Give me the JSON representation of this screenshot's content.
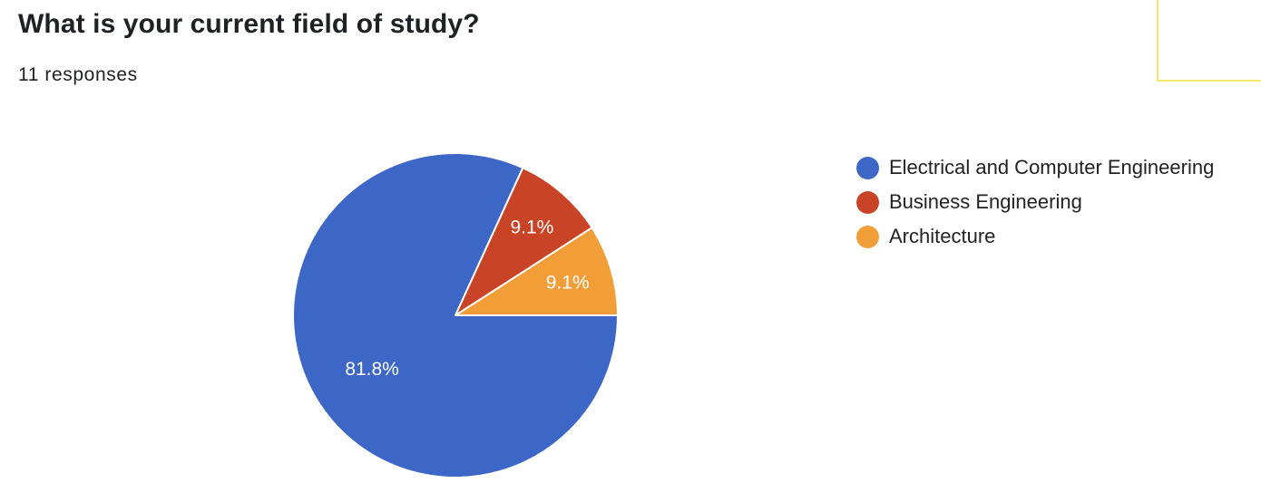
{
  "question": {
    "title": "What is your current field of study?",
    "responses": "11 responses"
  },
  "chart_data": {
    "type": "pie",
    "categories": [
      "Electrical and Computer Engineering",
      "Business Engineering",
      "Architecture"
    ],
    "values": [
      9,
      1,
      1
    ],
    "percent_labels": [
      "81.8%",
      "9.1%",
      "9.1%"
    ],
    "colors": [
      "#3d67c6",
      "#c94327",
      "#f29e38"
    ],
    "legend_position": "right"
  }
}
